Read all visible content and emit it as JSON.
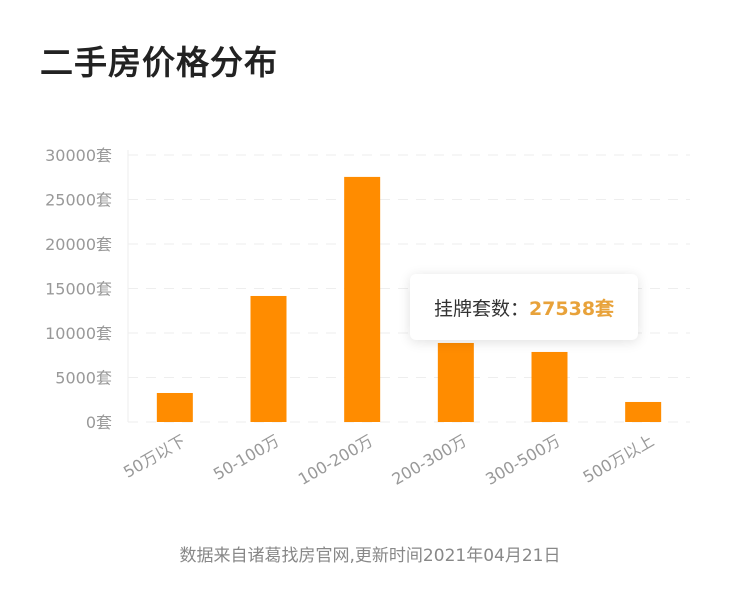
{
  "title": "二手房价格分布",
  "chart_data": {
    "type": "bar",
    "title": "二手房价格分布",
    "categories": [
      "50万以下",
      "50-100万",
      "100-200万",
      "200-300万",
      "300-500万",
      "500万以上"
    ],
    "values": [
      3260,
      14160,
      27538,
      8880,
      7870,
      2250
    ],
    "ylim": [
      0,
      30000
    ],
    "yticks": [
      0,
      5000,
      10000,
      15000,
      20000,
      25000,
      30000
    ],
    "ytick_labels": [
      "0套",
      "5000套",
      "10000套",
      "15000套",
      "20000套",
      "25000套",
      "30000套"
    ],
    "xlabel": "",
    "ylabel": "",
    "grid": true,
    "bar_color": "#ff8c00"
  },
  "tooltip": {
    "label": "挂牌套数：",
    "value": "27538套"
  },
  "source": "数据来自诸葛找房官网,更新时间2021年04月21日"
}
